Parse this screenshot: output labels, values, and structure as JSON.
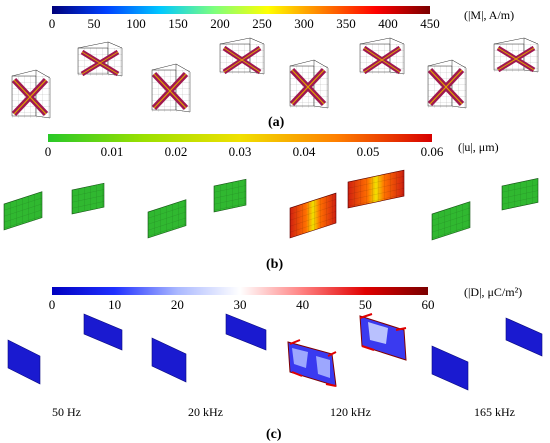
{
  "panels": [
    {
      "id": "a",
      "label": "(a)",
      "unit": "(|M|, A/m)",
      "colormap": [
        "#00007a",
        "#0040ff",
        "#00c8ff",
        "#7dff7d",
        "#ffff00",
        "#ff8000",
        "#ff0000",
        "#7a0000"
      ],
      "ticks": [
        "0",
        "50",
        "100",
        "150",
        "200",
        "250",
        "300",
        "350",
        "400",
        "450"
      ]
    },
    {
      "id": "b",
      "label": "(b)",
      "unit": "(|u|,  μm)",
      "colormap": [
        "#28c828",
        "#9be000",
        "#f0e000",
        "#ff8000",
        "#d70000"
      ],
      "ticks": [
        "0",
        "0.01",
        "0.02",
        "0.03",
        "0.04",
        "0.05",
        "0.06"
      ]
    },
    {
      "id": "c",
      "label": "(c)",
      "unit": "(|D|,  μC/m²)",
      "colormap": [
        "#0000c0",
        "#2030ff",
        "#aab8ff",
        "#ffffff",
        "#ff8080",
        "#e00000",
        "#7a0000"
      ],
      "ticks": [
        "0",
        "10",
        "20",
        "30",
        "40",
        "50",
        "60"
      ]
    }
  ],
  "frequencies": [
    "50 Hz",
    "20 kHz",
    "120 kHz",
    "165 kHz"
  ],
  "colors": {
    "core": "#a01850",
    "cross": "#e0a000",
    "green_plate": "#30b830",
    "red_plate": "#d02010",
    "yellow_band": "#f0d000",
    "blue_plate": "#1a1ad0",
    "grid": "#555555"
  }
}
